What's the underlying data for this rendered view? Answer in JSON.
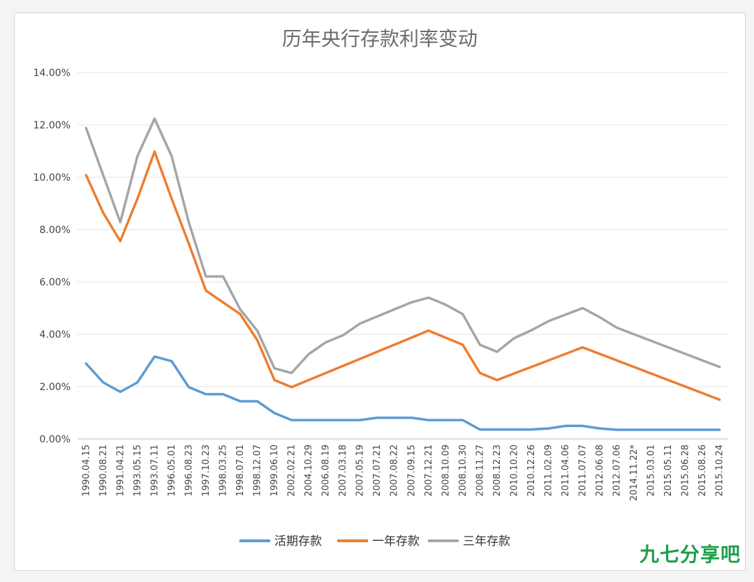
{
  "chart_data": {
    "type": "line",
    "title": "历年央行存款利率变动",
    "ylim": [
      0,
      14
    ],
    "yticks": [
      "0.00%",
      "2.00%",
      "4.00%",
      "6.00%",
      "8.00%",
      "10.00%",
      "12.00%",
      "14.00%"
    ],
    "grid": true,
    "legend_position": "bottom",
    "categories": [
      "1990.04.15",
      "1990.08.21",
      "1991.04.21",
      "1993.05.15",
      "1993.07.11",
      "1996.05.01",
      "1996.08.23",
      "1997.10.23",
      "1998.03.25",
      "1998.07.01",
      "1998.12.07",
      "1999.06.10",
      "2002.02.21",
      "2004.10.29",
      "2006.08.19",
      "2007.03.18",
      "2007.05.19",
      "2007.07.21",
      "2007.08.22",
      "2007.09.15",
      "2007.12.21",
      "2008.10.09",
      "2008.10.30",
      "2008.11.27",
      "2008.12.23",
      "2010.10.20",
      "2010.12.26",
      "2011.02.09",
      "2011.04.06",
      "2011.07.07",
      "2012.06.08",
      "2012.07.06",
      "2014.11.22*",
      "2015.03.01",
      "2015.05.11",
      "2015.06.28",
      "2015.08.26",
      "2015.10.24"
    ],
    "series": [
      {
        "name": "活期存款",
        "color": "#5b9bd5",
        "values": [
          2.88,
          2.16,
          1.8,
          2.16,
          3.15,
          2.97,
          1.98,
          1.71,
          1.71,
          1.44,
          1.44,
          0.99,
          0.72,
          0.72,
          0.72,
          0.72,
          0.72,
          0.81,
          0.81,
          0.81,
          0.72,
          0.72,
          0.72,
          0.36,
          0.36,
          0.36,
          0.36,
          0.4,
          0.5,
          0.5,
          0.4,
          0.35,
          0.35,
          0.35,
          0.35,
          0.35,
          0.35,
          0.35
        ]
      },
      {
        "name": "一年存款",
        "color": "#ed7d31",
        "values": [
          10.08,
          8.64,
          7.56,
          9.18,
          10.98,
          9.18,
          7.47,
          5.67,
          5.22,
          4.77,
          3.78,
          2.25,
          1.98,
          2.25,
          2.52,
          2.79,
          3.06,
          3.33,
          3.6,
          3.87,
          4.14,
          3.87,
          3.6,
          2.52,
          2.25,
          2.5,
          2.75,
          3.0,
          3.25,
          3.5,
          3.25,
          3.0,
          2.75,
          2.5,
          2.25,
          2.0,
          1.75,
          1.5
        ]
      },
      {
        "name": "三年存款",
        "color": "#a5a5a5",
        "values": [
          11.88,
          10.08,
          8.28,
          10.8,
          12.24,
          10.8,
          8.28,
          6.21,
          6.21,
          4.95,
          4.14,
          2.7,
          2.52,
          3.24,
          3.69,
          3.96,
          4.41,
          4.68,
          4.95,
          5.22,
          5.4,
          5.13,
          4.77,
          3.6,
          3.33,
          3.85,
          4.15,
          4.5,
          4.75,
          5.0,
          4.65,
          4.25,
          4.0,
          3.75,
          3.5,
          3.25,
          3.0,
          2.75
        ]
      }
    ]
  },
  "watermark": "九七分享吧"
}
